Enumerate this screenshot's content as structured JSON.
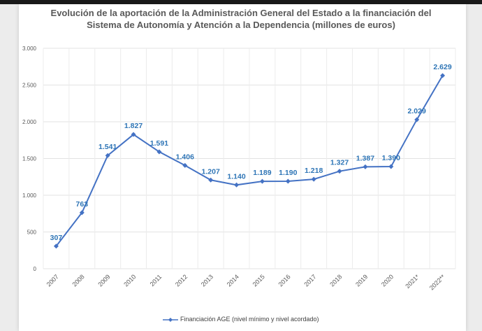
{
  "chart_data": {
    "type": "line",
    "title": "Evolución de la aportación de la Administración General del Estado a la financiación del Sistema de Autonomía y Atención a la Dependencia (millones de euros)",
    "title_lines": [
      "Evolución de la aportación de la Administración General del Estado a la financiación del",
      "Sistema de Autonomía y Atención a la Dependencia (millones de euros)"
    ],
    "categories": [
      "2007",
      "2008",
      "2009",
      "2010",
      "2011",
      "2012",
      "2013",
      "2014",
      "2015",
      "2016",
      "2017",
      "2018",
      "2019",
      "2020",
      "2021*",
      "2022**"
    ],
    "series": [
      {
        "name": "Financiación AGE (nivel mínimo y nivel acordado)",
        "values": [
          307,
          763,
          1541,
          1827,
          1591,
          1406,
          1207,
          1140,
          1189,
          1190,
          1218,
          1327,
          1387,
          1390,
          2029,
          2629
        ],
        "labels": [
          "307",
          "763",
          "1.541",
          "1.827",
          "1.591",
          "1.406",
          "1.207",
          "1.140",
          "1.189",
          "1.190",
          "1.218",
          "1.327",
          "1.387",
          "1.390",
          "2.029",
          "2.629"
        ],
        "color": "#4472c4",
        "label_color": "#2e75b6"
      }
    ],
    "ylim": [
      0,
      3000
    ],
    "yticks": [
      0,
      500,
      1000,
      1500,
      2000,
      2500,
      3000
    ],
    "ytick_labels": [
      "0",
      "500",
      "1.000",
      "1.500",
      "2.000",
      "2.500",
      "3.000"
    ],
    "grid": true,
    "legend": "bottom"
  }
}
